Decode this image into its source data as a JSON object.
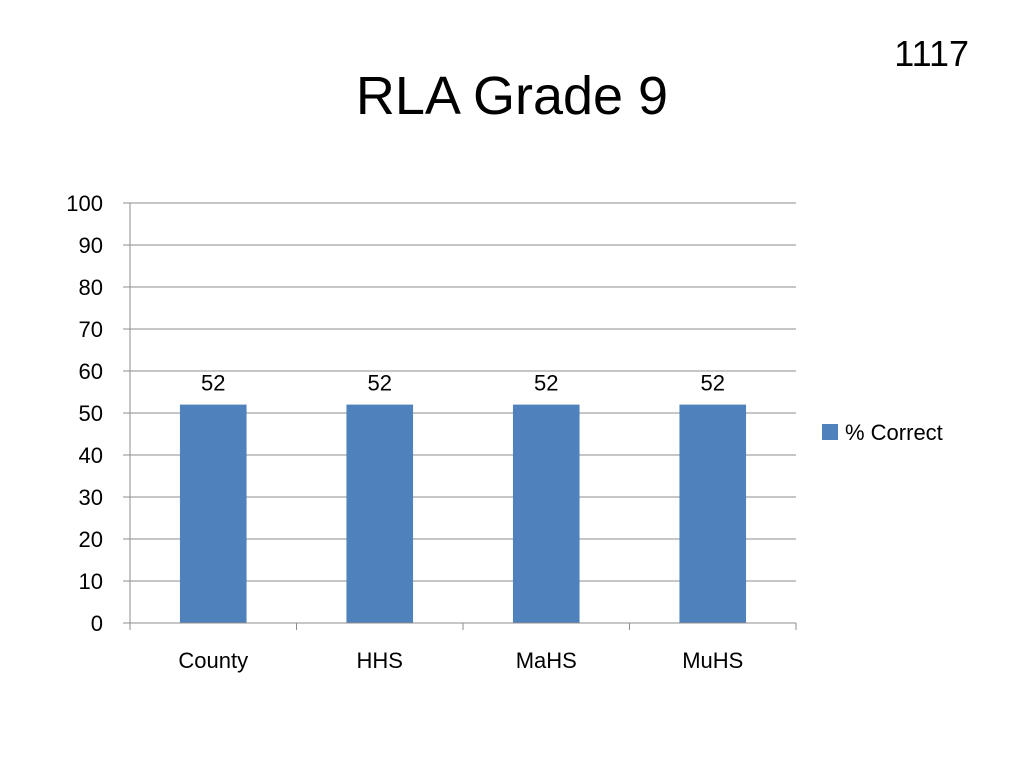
{
  "slide": {
    "number": "1117"
  },
  "chart_data": {
    "type": "bar",
    "title": "RLA Grade 9",
    "categories": [
      "County",
      "HHS",
      "MaHS",
      "MuHS"
    ],
    "series": [
      {
        "name": "% Correct",
        "values": [
          52,
          52,
          52,
          52
        ]
      }
    ],
    "data_labels": [
      "52",
      "52",
      "52",
      "52"
    ],
    "ylim": [
      0,
      100
    ],
    "yticks": [
      "0",
      "10",
      "20",
      "30",
      "40",
      "50",
      "60",
      "70",
      "80",
      "90",
      "100"
    ],
    "grid": true,
    "legend_position": "right",
    "colors": {
      "bar": "#4F81BD",
      "grid": "#8C8C8C",
      "axis": "#8C8C8C"
    }
  }
}
